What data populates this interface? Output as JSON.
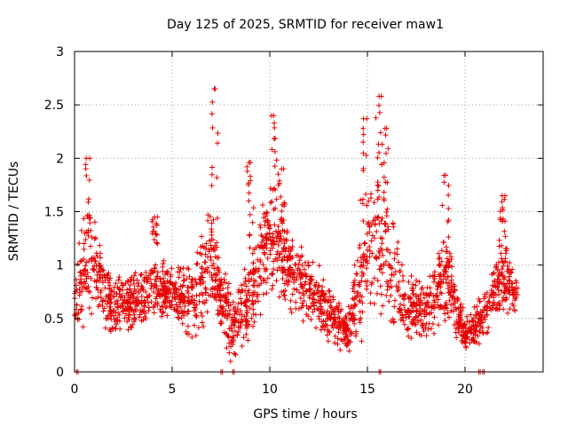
{
  "chart_data": {
    "type": "scatter",
    "title": "Day 125 of 2025, SRMTID for receiver maw1",
    "xlabel": "GPS time / hours",
    "ylabel": "SRMTID / TECUs",
    "xlim": [
      0,
      24
    ],
    "ylim": [
      0,
      3
    ],
    "x_ticks": [
      0,
      5,
      10,
      15,
      20
    ],
    "y_ticks": [
      0,
      0.5,
      1,
      1.5,
      2,
      2.5,
      3
    ],
    "x_tick_labels": [
      "0",
      "5",
      "10",
      "15",
      "20"
    ],
    "y_tick_labels": [
      "0",
      "0.5",
      "1",
      "1.5",
      "2",
      "2.5",
      "3"
    ],
    "grid": true,
    "marker": "+",
    "color": "#e60000",
    "data_x_range": [
      0,
      22.7
    ],
    "point_count": 2200,
    "envelope": [
      {
        "x": 0.0,
        "low": 0.25,
        "high": 0.9
      },
      {
        "x": 0.5,
        "low": 0.4,
        "high": 1.75
      },
      {
        "x": 1.0,
        "low": 0.55,
        "high": 1.45
      },
      {
        "x": 2.0,
        "low": 0.3,
        "high": 0.85
      },
      {
        "x": 3.0,
        "low": 0.4,
        "high": 0.95
      },
      {
        "x": 4.0,
        "low": 0.45,
        "high": 1.1
      },
      {
        "x": 5.0,
        "low": 0.5,
        "high": 1.0
      },
      {
        "x": 6.0,
        "low": 0.25,
        "high": 1.0
      },
      {
        "x": 7.0,
        "low": 0.5,
        "high": 1.6
      },
      {
        "x": 8.0,
        "low": 0.05,
        "high": 0.75
      },
      {
        "x": 9.0,
        "low": 0.3,
        "high": 1.05
      },
      {
        "x": 10.0,
        "low": 0.7,
        "high": 1.85
      },
      {
        "x": 11.0,
        "low": 0.6,
        "high": 1.35
      },
      {
        "x": 12.0,
        "low": 0.45,
        "high": 1.15
      },
      {
        "x": 13.0,
        "low": 0.3,
        "high": 0.8
      },
      {
        "x": 14.0,
        "low": 0.15,
        "high": 0.6
      },
      {
        "x": 15.0,
        "low": 0.35,
        "high": 1.85
      },
      {
        "x": 16.0,
        "low": 0.3,
        "high": 1.8
      },
      {
        "x": 17.0,
        "low": 0.3,
        "high": 0.85
      },
      {
        "x": 18.0,
        "low": 0.3,
        "high": 0.9
      },
      {
        "x": 19.0,
        "low": 0.45,
        "high": 1.4
      },
      {
        "x": 20.0,
        "low": 0.2,
        "high": 0.5
      },
      {
        "x": 21.0,
        "low": 0.3,
        "high": 0.75
      },
      {
        "x": 22.0,
        "low": 0.55,
        "high": 1.35
      },
      {
        "x": 22.7,
        "low": 0.45,
        "high": 0.95
      }
    ],
    "peaks": [
      {
        "x": 0.6,
        "y": 2.0
      },
      {
        "x": 4.1,
        "y": 1.45
      },
      {
        "x": 7.2,
        "y": 2.65
      },
      {
        "x": 9.0,
        "y": 1.96
      },
      {
        "x": 10.2,
        "y": 2.4
      },
      {
        "x": 10.6,
        "y": 1.9
      },
      {
        "x": 14.8,
        "y": 2.37
      },
      {
        "x": 15.6,
        "y": 2.58
      },
      {
        "x": 15.9,
        "y": 2.28
      },
      {
        "x": 19.0,
        "y": 1.84
      },
      {
        "x": 21.9,
        "y": 1.65
      }
    ],
    "zero_points": [
      0.1,
      7.5,
      8.1,
      15.6,
      20.7,
      20.9
    ]
  }
}
